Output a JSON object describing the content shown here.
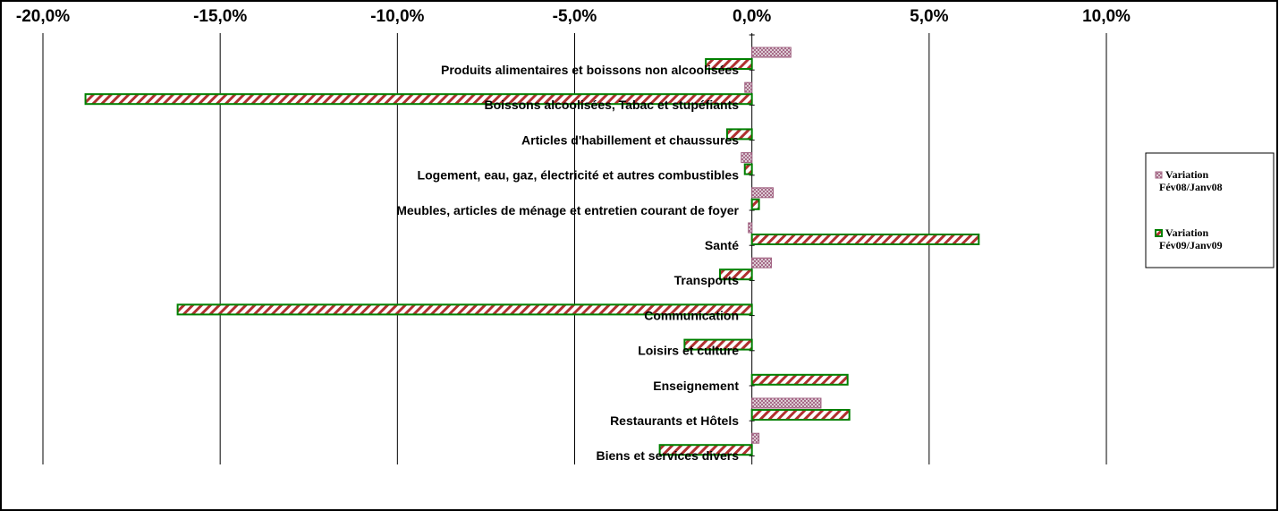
{
  "chart_data": {
    "type": "bar",
    "orientation": "horizontal",
    "title": "",
    "xlabel": "",
    "ylabel": "",
    "xlim": [
      -0.2,
      0.1
    ],
    "xticks": [
      -0.2,
      -0.15,
      -0.1,
      -0.05,
      0.0,
      0.05,
      0.1
    ],
    "xtick_labels": [
      "-20,0%",
      "-15,0%",
      "-10,0%",
      "-5,0%",
      "0,0%",
      "5,0%",
      "10,0%"
    ],
    "axis_position": "top",
    "grid": "vertical",
    "legend": "right",
    "categories": [
      "Produits alimentaires et boissons non alcoolisées",
      "Boissons alcoolisées, Tabac et stupéfiants",
      "Articles d'habillement et chaussures",
      "Logement, eau, gaz, électricité et autres combustibles",
      "Meubles, articles de ménage et entretien courant de foyer",
      "Santé",
      "Transports",
      "Communication",
      "Loisirs et culture",
      "Enseignement",
      "Restaurants et Hôtels",
      "Biens et services divers"
    ],
    "series": [
      {
        "name": "Variation Fév08/Janv08",
        "color": "#b07890",
        "pattern": "crosshatch",
        "values": [
          0.011,
          -0.002,
          0.0,
          -0.003,
          0.006,
          -0.001,
          0.0055,
          0.0,
          0.0,
          0.0,
          0.0195,
          0.002
        ]
      },
      {
        "name": "Variation Fév09/Janv09",
        "color": "#008000",
        "pattern": "diagonal-red",
        "values": [
          -0.013,
          -0.188,
          -0.007,
          -0.002,
          0.002,
          0.064,
          -0.009,
          -0.162,
          -0.019,
          0.027,
          0.0275,
          -0.026
        ]
      }
    ]
  },
  "legend": {
    "items": [
      {
        "line1": "Variation",
        "line2": "Fév08/Janv08"
      },
      {
        "line1": "Variation",
        "line2": "Fév09/Janv09"
      }
    ]
  }
}
